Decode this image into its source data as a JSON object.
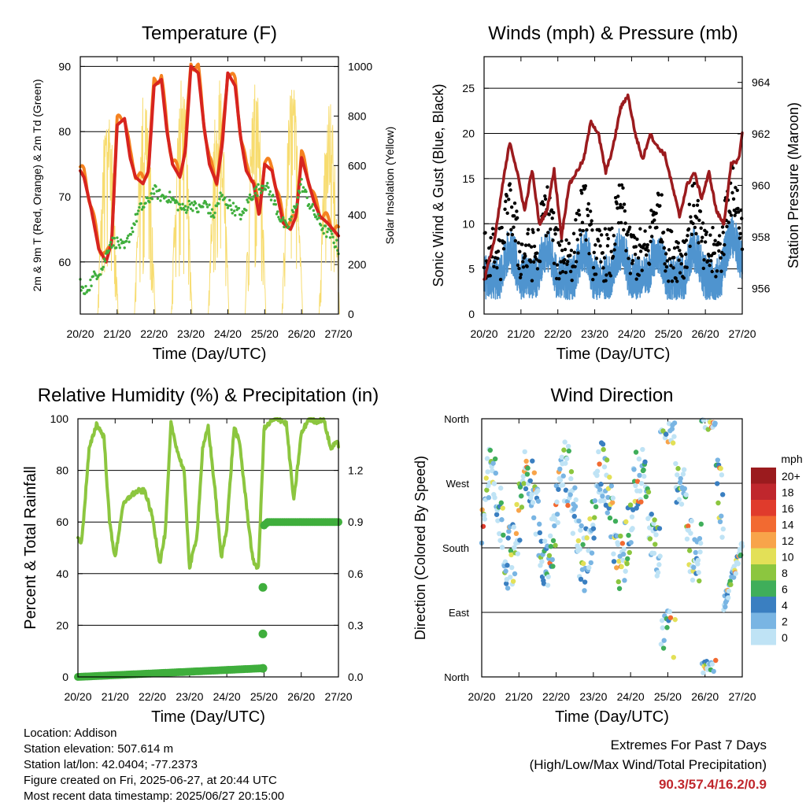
{
  "x_ticks": [
    "20/20",
    "21/20",
    "22/20",
    "23/20",
    "24/20",
    "25/20",
    "26/20",
    "27/20"
  ],
  "chart_data": [
    {
      "type": "line",
      "title": "Temperature (F)",
      "xlabel": "Time (Day/UTC)",
      "ylabel": "2m & 9m T (Red, Orange) & 2m Td (Green)",
      "y2label": "Solar Insolation (Yellow)",
      "ylim": [
        52,
        91.5
      ],
      "y2lim": [
        0,
        1040
      ],
      "yticks": [
        "60",
        "70",
        "80",
        "90"
      ],
      "y2ticks": [
        "0",
        "200",
        "400",
        "600",
        "800",
        "1000"
      ],
      "colors": {
        "t2m": "#d7241f",
        "t9m": "#f58220",
        "td": "#3fae3c",
        "solar": "#f7dc6f"
      },
      "series": [
        {
          "name": "2m T",
          "x": [
            0,
            0.1,
            0.3,
            0.5,
            0.7,
            0.85,
            1.0,
            1.2,
            1.35,
            1.5,
            1.7,
            1.85,
            2.0,
            2.2,
            2.35,
            2.5,
            2.7,
            2.85,
            3.0,
            3.2,
            3.35,
            3.5,
            3.7,
            3.85,
            4.0,
            4.2,
            4.35,
            4.5,
            4.7,
            4.85,
            5.0,
            5.2,
            5.35,
            5.5,
            5.7,
            5.85,
            6.0,
            6.2,
            6.35,
            6.5,
            6.7,
            6.85,
            7.0
          ],
          "values": [
            74,
            73,
            68,
            62,
            60,
            63,
            81,
            82,
            76,
            73,
            72,
            74,
            87,
            88,
            80,
            75,
            73,
            77,
            90,
            89,
            81,
            75,
            72,
            78,
            89,
            87,
            79,
            74,
            72,
            67,
            75,
            74,
            70,
            66,
            65,
            67,
            76,
            72,
            69,
            67,
            66,
            65,
            64
          ]
        },
        {
          "name": "Dew point",
          "x": [
            0,
            0.1,
            0.2,
            0.4,
            0.6,
            0.8,
            1.0,
            1.2,
            1.4,
            1.6,
            1.8,
            2.0,
            2.2,
            2.4,
            2.6,
            2.8,
            3.0,
            3.2,
            3.4,
            3.6,
            3.8,
            4.0,
            4.2,
            4.4,
            4.6,
            4.8,
            5.0,
            5.2,
            5.4,
            5.6,
            5.8,
            6.0,
            6.2,
            6.4,
            6.6,
            6.8,
            7.0
          ],
          "values": [
            57,
            55,
            56,
            58,
            59,
            63,
            63,
            62,
            65,
            68,
            69,
            71,
            70,
            70,
            69,
            68,
            69,
            68,
            69,
            67,
            70,
            69,
            68,
            67,
            70,
            71,
            72,
            70,
            67,
            65,
            68,
            72,
            69,
            67,
            65,
            64,
            62
          ]
        },
        {
          "name": "Solar",
          "peaks_x": [
            0.75,
            1.75,
            2.75,
            3.75,
            4.75,
            5.75,
            6.75
          ],
          "peaks": [
            880,
            950,
            960,
            970,
            980,
            960,
            900
          ]
        }
      ]
    },
    {
      "type": "scatter",
      "title": "Winds (mph) & Pressure (mb)",
      "xlabel": "Time (Day/UTC)",
      "ylabel": "Sonic Wind & Gust (Blue, Black)",
      "y2label": "Station Pressure (Maroon)",
      "ylim": [
        0,
        28.5
      ],
      "y2lim": [
        955,
        965
      ],
      "yticks": [
        "0",
        "5",
        "10",
        "15",
        "20",
        "25"
      ],
      "y2ticks": [
        "956",
        "958",
        "960",
        "962",
        "964"
      ],
      "colors": {
        "wind": "#4f94cf",
        "gust": "#000000",
        "pressure": "#9b1b1e"
      },
      "series": [
        {
          "name": "Pressure",
          "x": [
            0,
            0.3,
            0.5,
            0.7,
            0.9,
            1.1,
            1.3,
            1.5,
            1.7,
            1.9,
            2.1,
            2.3,
            2.5,
            2.7,
            2.9,
            3.1,
            3.3,
            3.5,
            3.7,
            3.9,
            4.1,
            4.3,
            4.5,
            4.7,
            4.9,
            5.1,
            5.3,
            5.5,
            5.7,
            5.9,
            6.1,
            6.3,
            6.5,
            6.7,
            6.9,
            7.0
          ],
          "values": [
            956.3,
            958,
            960,
            961.7,
            960.5,
            959,
            960.6,
            958.5,
            959,
            960.6,
            958,
            960,
            960.5,
            961,
            962.5,
            962,
            960.5,
            961.5,
            963,
            963.5,
            962,
            961,
            962,
            961.5,
            961.2,
            960,
            958.8,
            960,
            960.5,
            959.5,
            960.5,
            959,
            958.5,
            960.8,
            961,
            962
          ]
        }
      ]
    },
    {
      "type": "line",
      "title": "Relative Humidity (%) & Precipitation (in)",
      "xlabel": "Time (Day/UTC)",
      "ylabel": "Percent & Total Rainfall",
      "ylim": [
        0,
        100
      ],
      "y2lim": [
        0,
        1.5
      ],
      "yticks": [
        "0",
        "20",
        "40",
        "60",
        "80",
        "100"
      ],
      "y2ticks": [
        "0.0",
        "0.3",
        "0.6",
        "0.9",
        "1.2"
      ],
      "colors": {
        "rh": "#8cc63f",
        "precip": "#3fae3c"
      },
      "series": [
        {
          "name": "RH",
          "x": [
            0,
            0.1,
            0.3,
            0.5,
            0.7,
            0.85,
            1.0,
            1.2,
            1.4,
            1.6,
            1.8,
            2.0,
            2.2,
            2.35,
            2.5,
            2.7,
            2.85,
            3.0,
            3.2,
            3.35,
            3.5,
            3.7,
            3.85,
            4.0,
            4.2,
            4.35,
            4.5,
            4.7,
            4.85,
            5.0,
            5.2,
            5.4,
            5.6,
            5.8,
            6.0,
            6.2,
            6.4,
            6.6,
            6.8,
            6.9,
            7.0
          ],
          "values": [
            54,
            52,
            88,
            98,
            93,
            60,
            46,
            66,
            70,
            72,
            72,
            62,
            44,
            56,
            98,
            86,
            80,
            42,
            55,
            88,
            97,
            70,
            46,
            58,
            97,
            90,
            70,
            45,
            42,
            96,
            99,
            100,
            98,
            68,
            94,
            100,
            99,
            100,
            88,
            91,
            90
          ]
        },
        {
          "name": "Total rainfall",
          "x": [
            0,
            4.95,
            4.96,
            4.97,
            4.98,
            5.0,
            5.1,
            7.0
          ],
          "values": [
            0,
            0.05,
            0.25,
            0.52,
            0.8,
            0.88,
            0.9,
            0.9
          ]
        }
      ]
    },
    {
      "type": "scatter",
      "title": "Wind Direction",
      "xlabel": "Time (Day/UTC)",
      "ylabel": "Direction (Colored By Speed)",
      "yticks": [
        "North",
        "East",
        "South",
        "West",
        "North"
      ],
      "ylim": [
        0,
        360
      ],
      "legend": {
        "title": "mph",
        "labels": [
          "20+",
          "18",
          "16",
          "14",
          "12",
          "10",
          "8",
          "6",
          "4",
          "2",
          "0"
        ],
        "colors": [
          "#9b1b1e",
          "#c0272d",
          "#e03b2c",
          "#f26a31",
          "#f8a44a",
          "#e3e057",
          "#8cc63f",
          "#3fae5a",
          "#3a7fc1",
          "#79b5e3",
          "#bfe3f5"
        ]
      }
    }
  ],
  "info": {
    "location": "Location: Addison",
    "elevation": "Station elevation: 507.614 m",
    "latlon": "Station lat/lon: 42.0404; -77.2373",
    "created": "Figure created on Fri, 2025-06-27, at 20:44 UTC",
    "recent": "Most recent data timestamp: 2025/06/27 20:15:00"
  },
  "extremes": {
    "line1": "Extremes For Past 7 Days",
    "line2": "(High/Low/Max Wind/Total Precipitation)",
    "value": "90.3/57.4/16.2/0.9"
  }
}
